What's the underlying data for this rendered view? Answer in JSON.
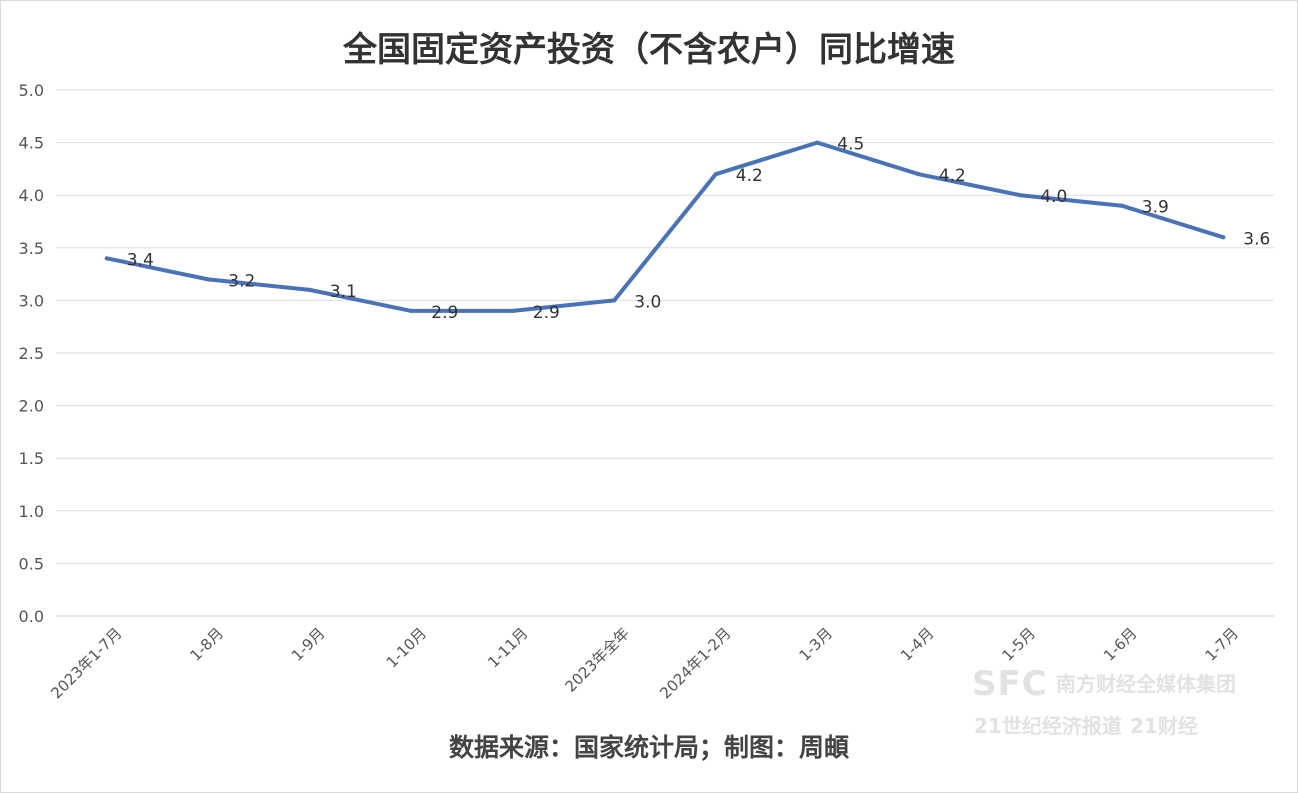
{
  "chart_data": {
    "type": "line",
    "title": "全国固定资产投资（不含农户）同比增速",
    "categories": [
      "2023年1-7月",
      "1-8月",
      "1-9月",
      "1-10月",
      "1-11月",
      "2023年全年",
      "2024年1-2月",
      "1-3月",
      "1-4月",
      "1-5月",
      "1-6月",
      "1-7月"
    ],
    "series": [
      {
        "values": [
          3.4,
          3.2,
          3.1,
          2.9,
          2.9,
          3.0,
          4.2,
          4.5,
          4.2,
          4.0,
          3.9,
          3.6
        ]
      }
    ],
    "value_labels": [
      "3.4",
      "3.2",
      "3.1",
      "2.9",
      "2.9",
      "3.0",
      "4.2",
      "4.5",
      "4.2",
      "4.0",
      "3.9",
      "3.6"
    ],
    "ylim": [
      0,
      5
    ],
    "yticks": [
      "0.0",
      "0.5",
      "1.0",
      "1.5",
      "2.0",
      "2.5",
      "3.0",
      "3.5",
      "4.0",
      "4.5",
      "5.0"
    ],
    "xlabel": "",
    "ylabel": "",
    "grid": true,
    "legend": "none",
    "line_color": "#4a72b8"
  },
  "source_note": "数据来源：国家统计局；制图：周頔",
  "watermark": {
    "logo": "SFC",
    "group": "南方财经全媒体集团",
    "brand_a": "21世纪经济报道",
    "brand_b": "21财经"
  }
}
